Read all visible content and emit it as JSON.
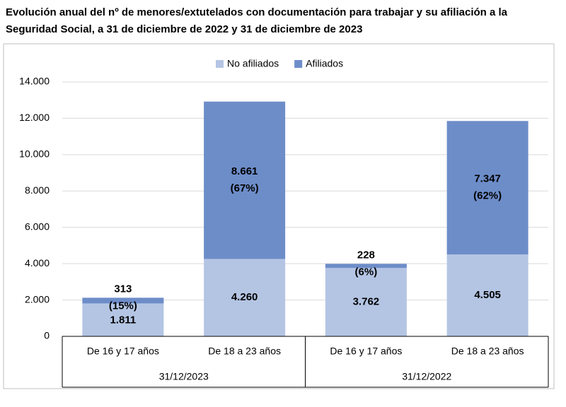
{
  "chart_data": {
    "type": "stacked-bar",
    "title": "Evolución anual del nº de menores/extutelados con documentación para trabajar y su afiliación a la Seguridad Social, a 31 de diciembre de 2022 y 31 de diciembre de 2023",
    "title_lines": [
      "Evolución anual del nº de menores/extutelados con documentación para trabajar y su afiliación a la",
      "Seguridad Social, a 31 de diciembre de 2022 y 31 de diciembre de 2023"
    ],
    "categories": [
      "De 16 y 17 años",
      "De 18 a 23 años",
      "De 16 y 17 años",
      "De 18 a 23 años"
    ],
    "groups": [
      {
        "label": "31/12/2023",
        "size": 2
      },
      {
        "label": "31/12/2022",
        "size": 2
      }
    ],
    "series": [
      {
        "name": "No afiliados",
        "color": "#b4c5e4",
        "values": [
          1811,
          4260,
          3762,
          4505
        ],
        "value_labels": [
          "1.811",
          "4.260",
          "3.762",
          "4.505"
        ]
      },
      {
        "name": "Afiliados",
        "color": "#6d8dc9",
        "values": [
          313,
          8661,
          228,
          7347
        ],
        "value_labels": [
          "313",
          "8.661",
          "228",
          "7.347"
        ],
        "share_labels": [
          "(15%)",
          "(67%)",
          "(6%)",
          "(62%)"
        ]
      }
    ],
    "ylim": [
      0,
      14000
    ],
    "yticks": [
      0,
      {
        "value": 2000,
        "label": "2.000"
      },
      {
        "value": 4000,
        "label": "4.000"
      },
      {
        "value": 6000,
        "label": "6.000"
      },
      {
        "value": 8000,
        "label": "8.000"
      },
      {
        "value": 10000,
        "label": "10.000"
      },
      {
        "value": 12000,
        "label": "12.000"
      },
      {
        "value": 14000,
        "label": "14.000"
      }
    ],
    "grid": true,
    "legend": "top"
  }
}
